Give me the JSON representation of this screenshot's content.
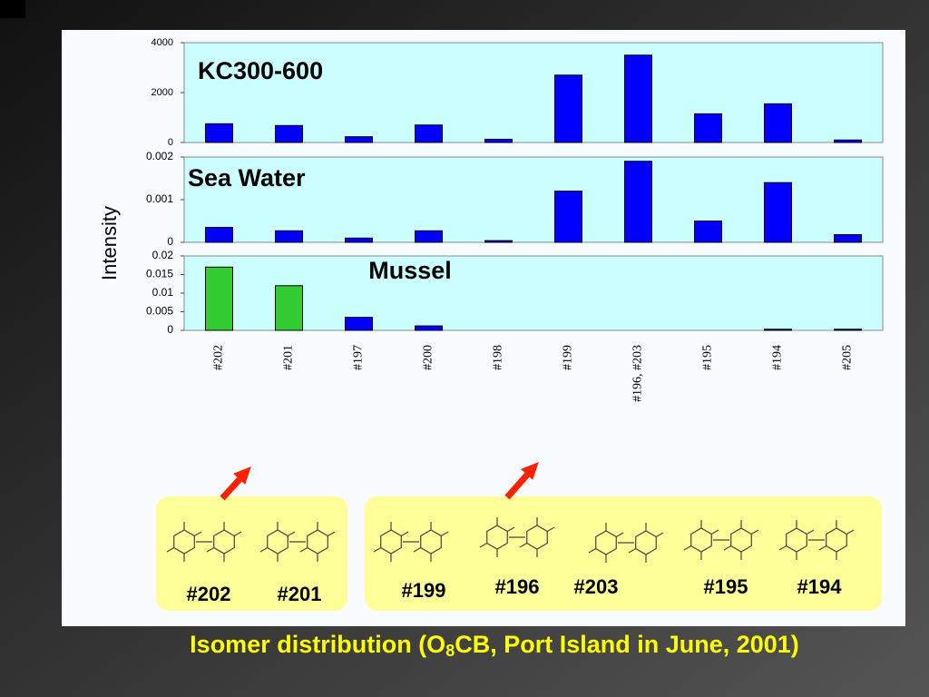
{
  "chart_data": [
    {
      "type": "bar",
      "title": "KC300-600",
      "color": "#0000ff",
      "categories": [
        "#202",
        "#201",
        "#197",
        "#200",
        "#198",
        "#199",
        "#196, #203",
        "#195",
        "#194",
        "#205"
      ],
      "values": [
        750,
        680,
        230,
        700,
        130,
        2700,
        3500,
        1150,
        1550,
        100
      ],
      "ylim": [
        0,
        4000
      ],
      "yticks": [
        0,
        2000,
        4000
      ]
    },
    {
      "type": "bar",
      "title": "Sea Water",
      "color": "#0000ff",
      "categories": [
        "#202",
        "#201",
        "#197",
        "#200",
        "#198",
        "#199",
        "#196, #203",
        "#195",
        "#194",
        "#205"
      ],
      "values": [
        0.00035,
        0.00027,
        0.0001,
        0.00027,
        4e-05,
        0.0012,
        0.0019,
        0.0005,
        0.0014,
        0.00018
      ],
      "ylim": [
        0,
        0.002
      ],
      "yticks": [
        0,
        0.001,
        0.002
      ]
    },
    {
      "type": "bar",
      "title": "Mussel",
      "colors": [
        "#33cc33",
        "#33cc33",
        "#0000ff",
        "#0000ff",
        "#0000ff",
        "#0000ff",
        "#0000ff",
        "#0000ff",
        "#0000ff",
        "#0000ff"
      ],
      "categories": [
        "#202",
        "#201",
        "#197",
        "#200",
        "#198",
        "#199",
        "#196, #203",
        "#195",
        "#194",
        "#205"
      ],
      "values": [
        0.017,
        0.012,
        0.0035,
        0.0012,
        0,
        0,
        0,
        0,
        0.0003,
        0.0003
      ],
      "ylim": [
        0,
        0.02
      ],
      "yticks": [
        0,
        0.005,
        0.01,
        0.015,
        0.02
      ]
    }
  ],
  "y_axis_label": "Intensity",
  "structures": {
    "group1": [
      "#202",
      "#201"
    ],
    "group2": [
      "#199",
      "#196",
      "#203",
      "#195",
      "#194"
    ]
  },
  "caption": {
    "before": "Isomer distribution (O",
    "subscript": "8",
    "after": "CB, Port Island in June, 2001)"
  }
}
